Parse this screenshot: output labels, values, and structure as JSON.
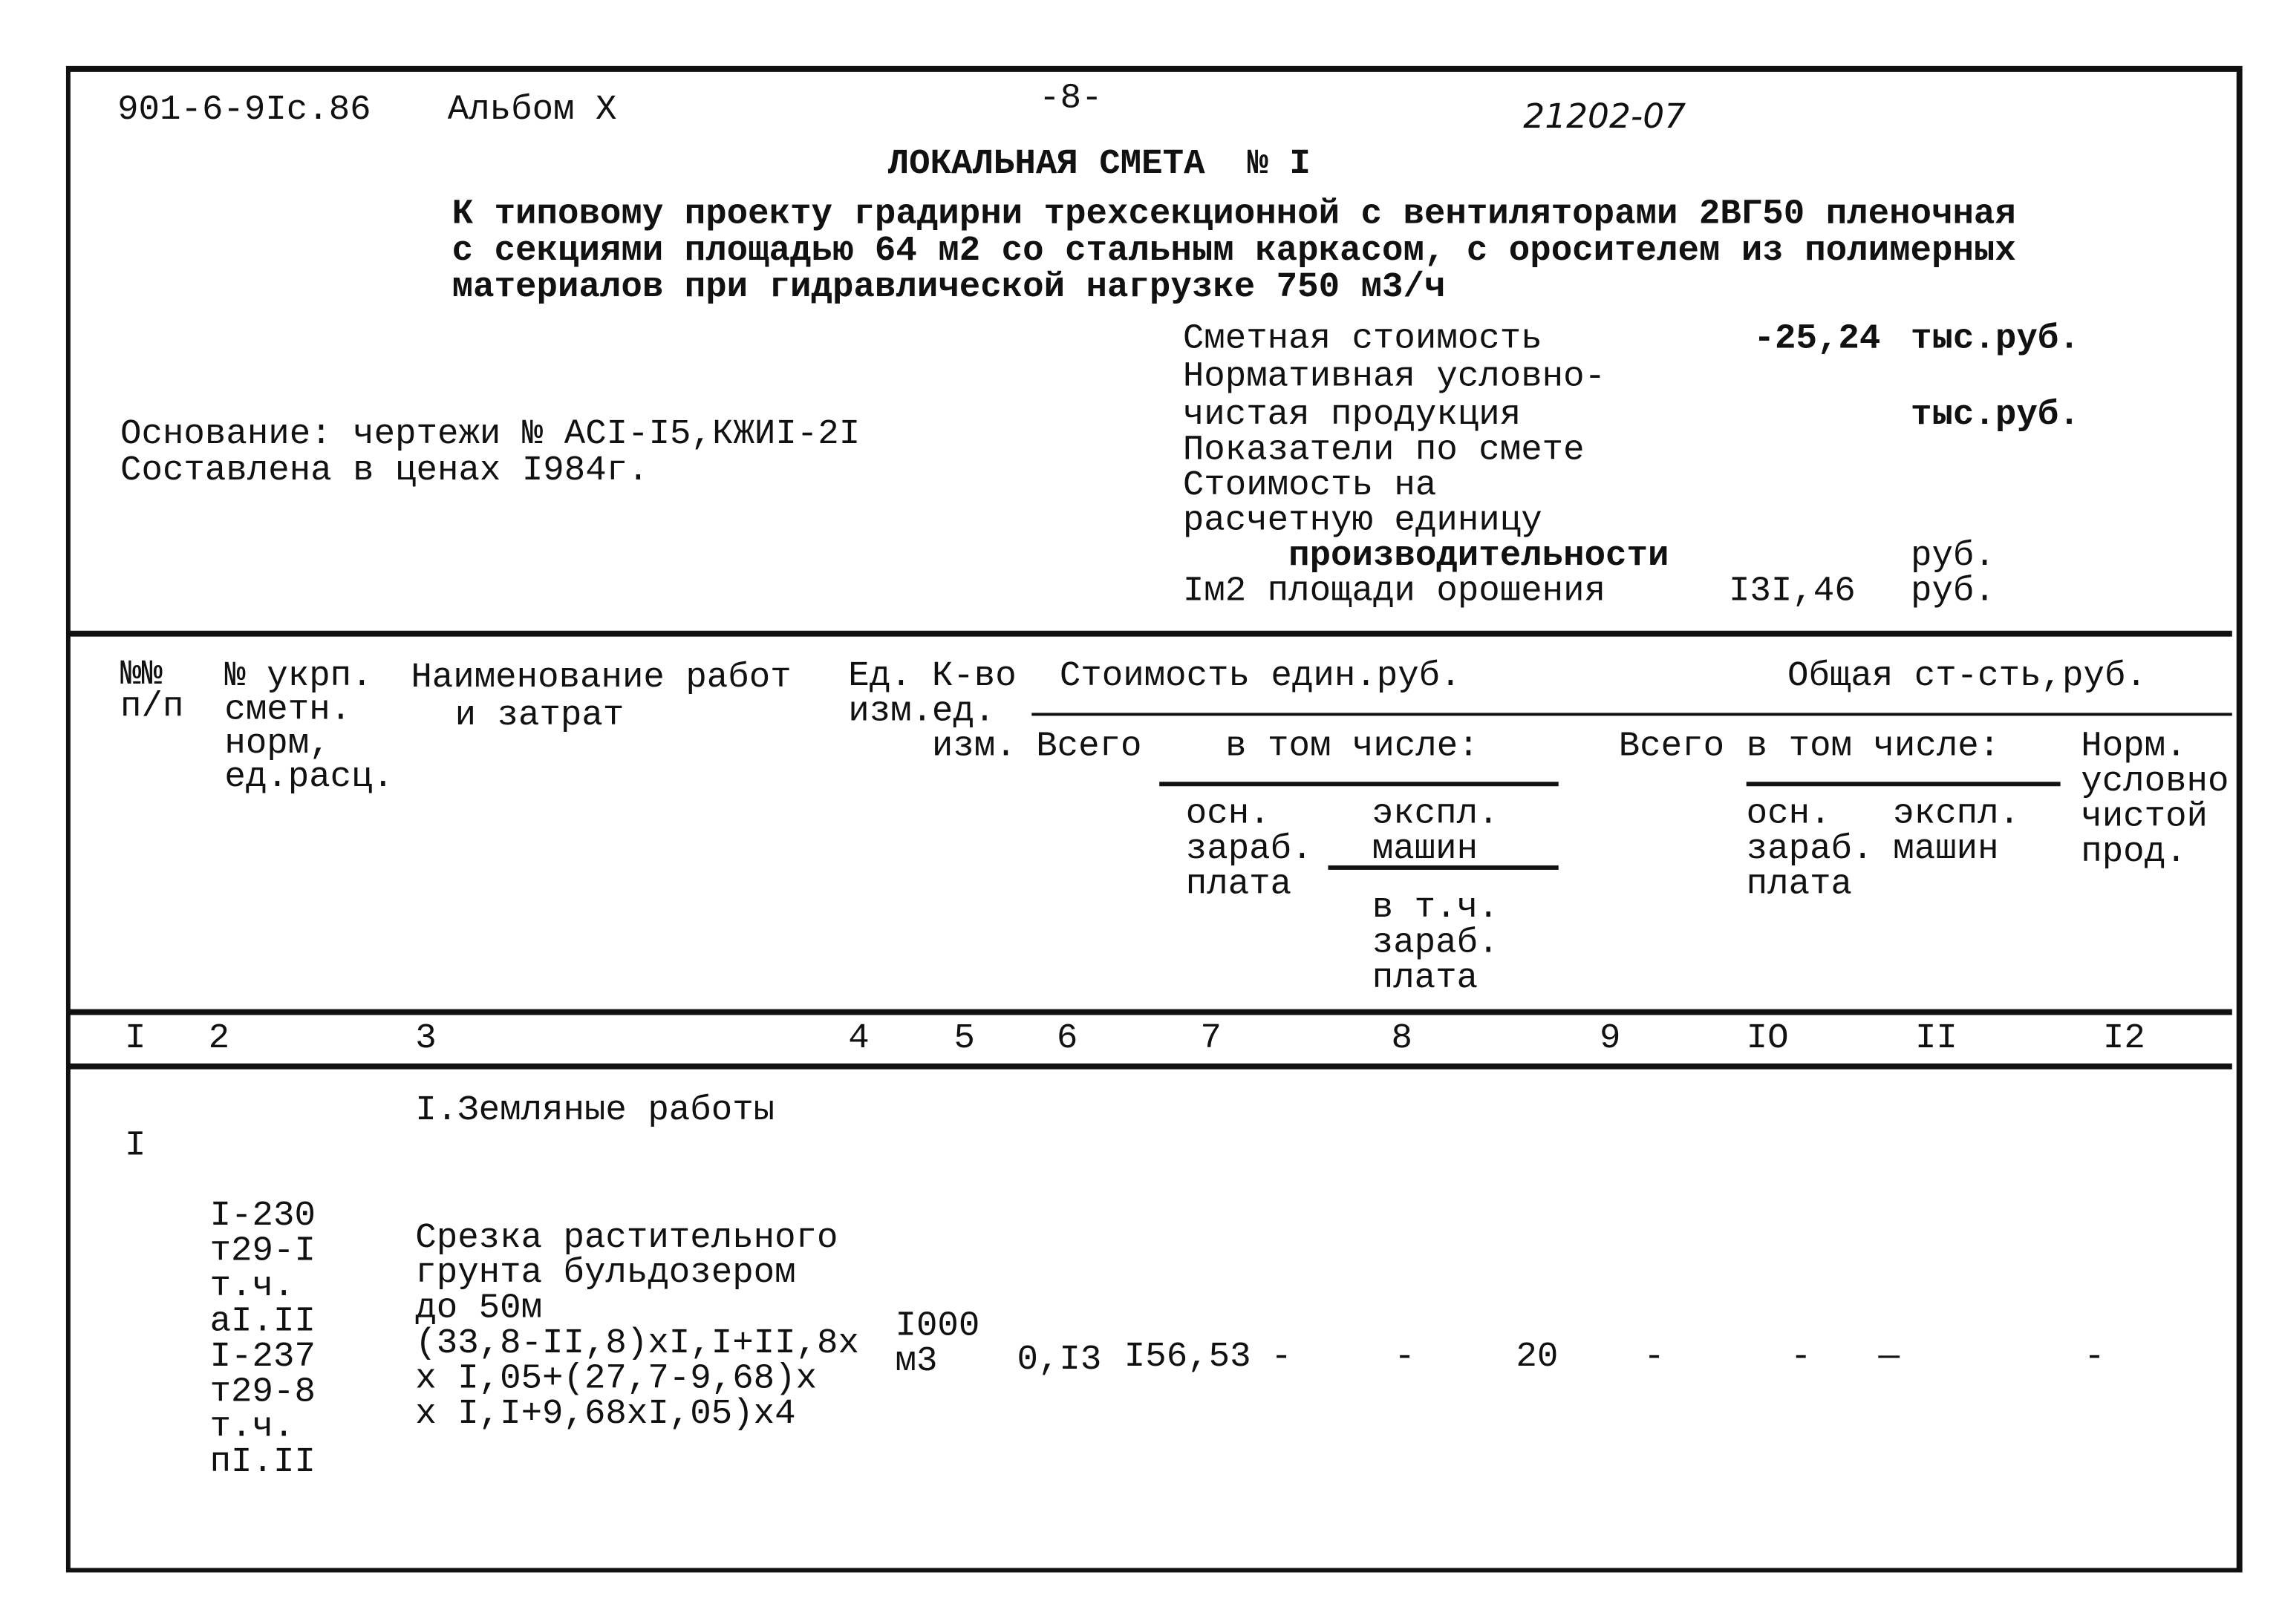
{
  "header": {
    "code": "901-6-9Ic.86",
    "album": "Альбом X",
    "page": "-8-",
    "doc_number": "21202-07",
    "title": "ЛОКАЛЬНАЯ СМЕТА  № I"
  },
  "description": [
    "К типовому проекту градирни трехсекционной с вентиляторами 2ВГ50 пленочная",
    "с секциями площадью 64 м2 со стальным каркасом, с оросителем из полимерных",
    "материалов при гидравлической нагрузке 750 м3/ч"
  ],
  "basis": [
    "Основание: чертежи № АСI-I5,КЖИI-2I",
    "Составлена в ценах I984г."
  ],
  "summary": {
    "cost_label": "Сметная стоимость",
    "cost_value": "-25,24",
    "cost_unit": "тыс.руб.",
    "norm_label_1": "Нормативная условно-",
    "norm_label_2": "чистая продукция",
    "norm_unit": "тыс.руб.",
    "indicators": "Показатели по смете",
    "unit_cost_1": "Стоимость на",
    "unit_cost_2": "расчетную единицу",
    "productivity": "производительности",
    "productivity_unit": "руб.",
    "area_label": "Iм2 площади орошения",
    "area_value": "I3I,46",
    "area_unit": "руб."
  },
  "table_header": {
    "num": [
      "№№",
      "п/п"
    ],
    "code": [
      "№ укрп.",
      "сметн.",
      "норм,",
      "ед.расц."
    ],
    "name": [
      "Наименование работ",
      "и затрат"
    ],
    "unit": [
      "Ед.",
      "изм."
    ],
    "qty": [
      "К-во",
      "ед.",
      "изм."
    ],
    "unit_cost": "Стоимость един.руб.",
    "total_cost": "Общая ст-сть,руб.",
    "total_1": "Всего",
    "incl_1": "в том числе:",
    "total_2": "Всего",
    "incl_2": "в том числе:",
    "wage_1": [
      "осн.",
      "зараб.",
      "плата"
    ],
    "mach_1": [
      "экспл.",
      "машин"
    ],
    "mach_wage": [
      "в т.ч.",
      "зараб.",
      "плата"
    ],
    "wage_2": [
      "осн.",
      "зараб.",
      "плата"
    ],
    "mach_2": [
      "экспл.",
      "машин"
    ],
    "norm": [
      "Норм.",
      "условно",
      "чистой",
      "прод."
    ]
  },
  "column_numbers": [
    "I",
    "2",
    "3",
    "4",
    "5",
    "6",
    "7",
    "8",
    "9",
    "IO",
    "II",
    "I2"
  ],
  "section": "I.Земляные работы",
  "rows": [
    {
      "num": "I",
      "codes": [
        "I-230",
        "т29-I",
        "т.ч.",
        "аI.II",
        "I-237",
        "т29-8",
        "т.ч.",
        "пI.II"
      ],
      "name": [
        "Срезка растительного",
        "грунта бульдозером",
        "до 50м",
        "(33,8-II,8)xI,I+II,8x",
        "x I,05+(27,7-9,68)x",
        "x I,I+9,68xI,05)x4"
      ],
      "unit": [
        "I000",
        "м3"
      ],
      "qty": "0,I3",
      "unit_total": "I56,53",
      "unit_wage": "-",
      "unit_machine": "-",
      "total": "20",
      "total_wage": "-",
      "total_machine": "-",
      "total_machine_extra": "—",
      "norm": "-"
    }
  ]
}
